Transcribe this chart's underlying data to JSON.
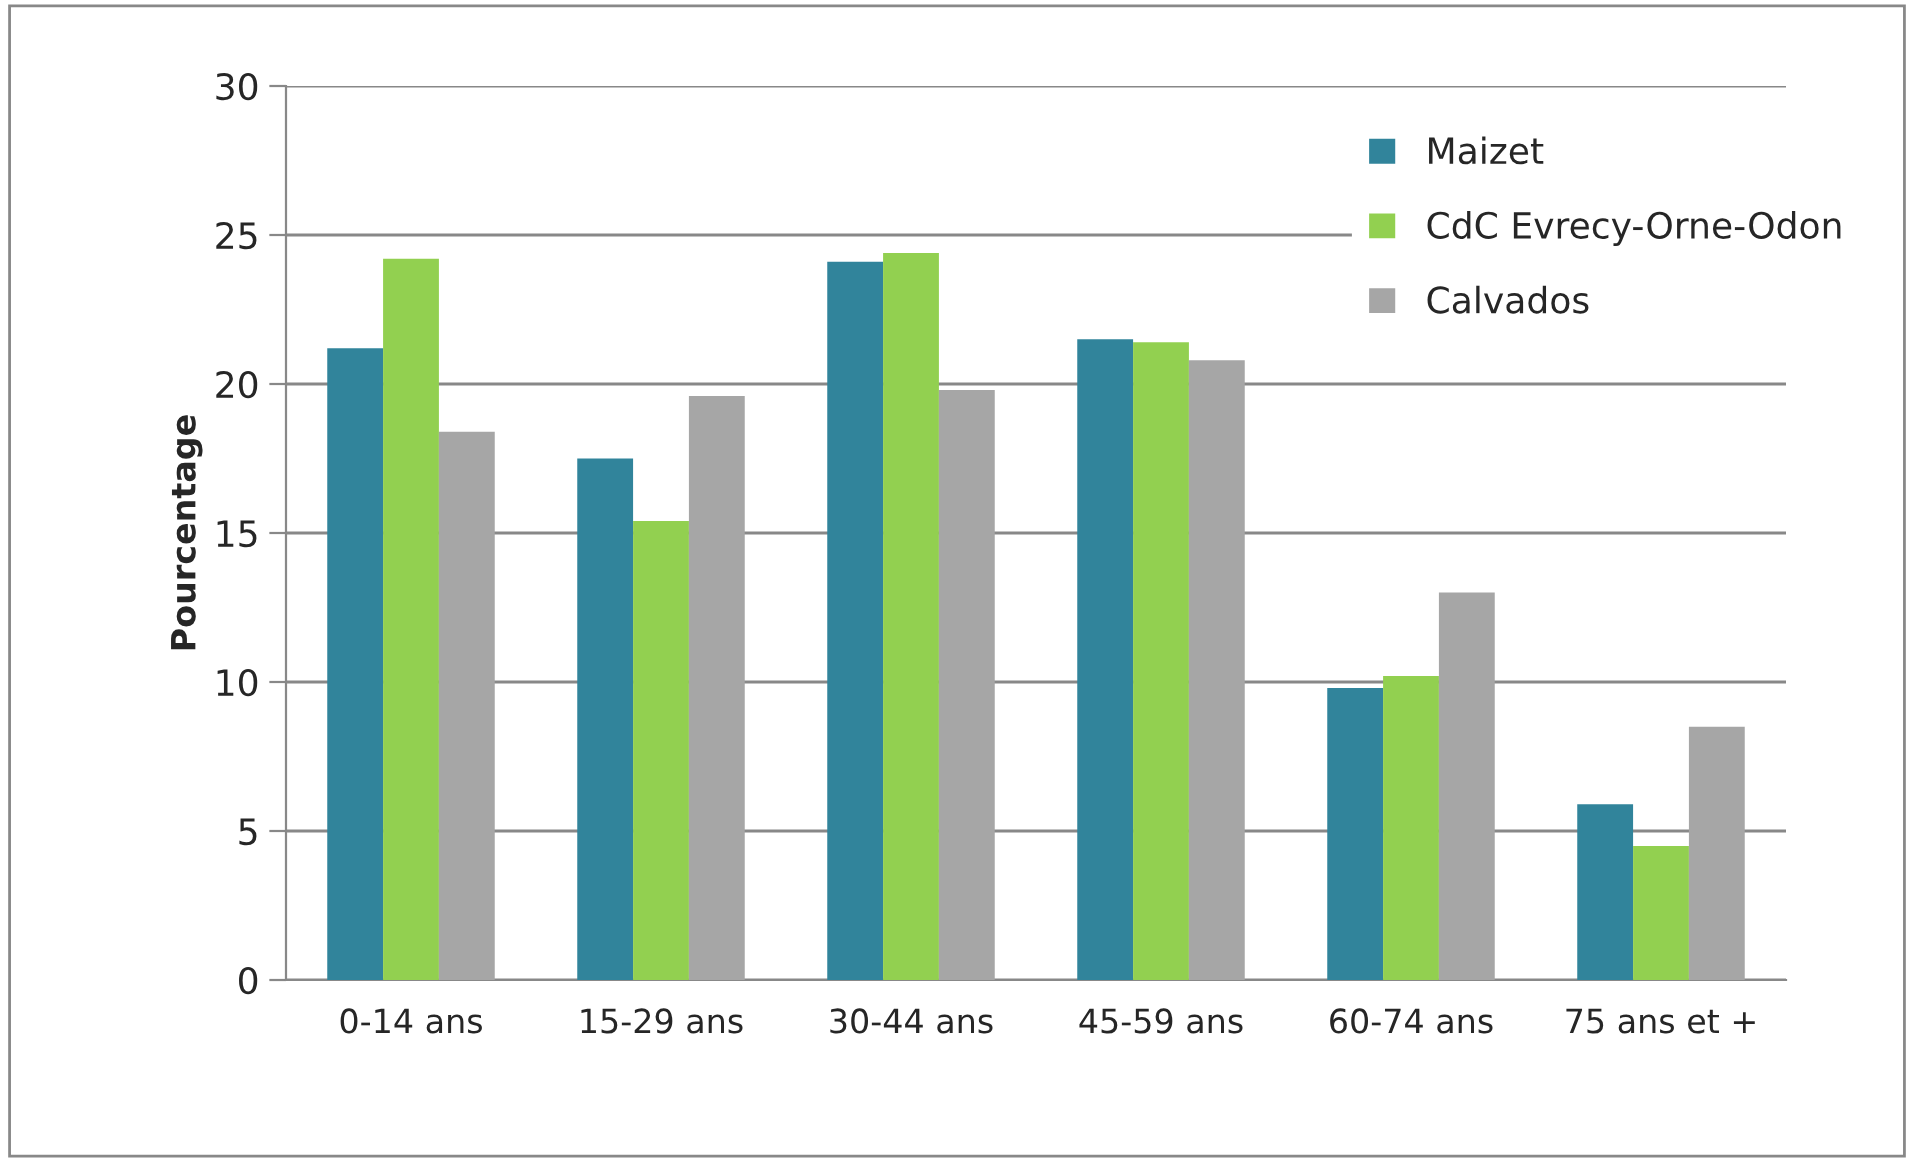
{
  "chart_data": {
    "type": "bar",
    "ylabel": "Pourcentage",
    "categories": [
      "0-14 ans",
      "15-29 ans",
      "30-44 ans",
      "45-59 ans",
      "60-74 ans",
      "75 ans et +"
    ],
    "series": [
      {
        "name": "Maizet",
        "color": "#31849b",
        "values": [
          21.2,
          17.5,
          24.1,
          21.5,
          9.8,
          5.9
        ]
      },
      {
        "name": "CdC Evrecy-Orne-Odon",
        "color": "#92d050",
        "values": [
          24.2,
          15.4,
          24.4,
          21.4,
          10.2,
          4.5
        ]
      },
      {
        "name": "Calvados",
        "color": "#a6a6a6",
        "values": [
          18.4,
          19.6,
          19.8,
          20.8,
          13.0,
          8.5
        ]
      }
    ],
    "ylim": [
      0,
      30
    ],
    "yticks": [
      0,
      5,
      10,
      15,
      20,
      25,
      30
    ],
    "grid": "y",
    "legend": "top right"
  }
}
